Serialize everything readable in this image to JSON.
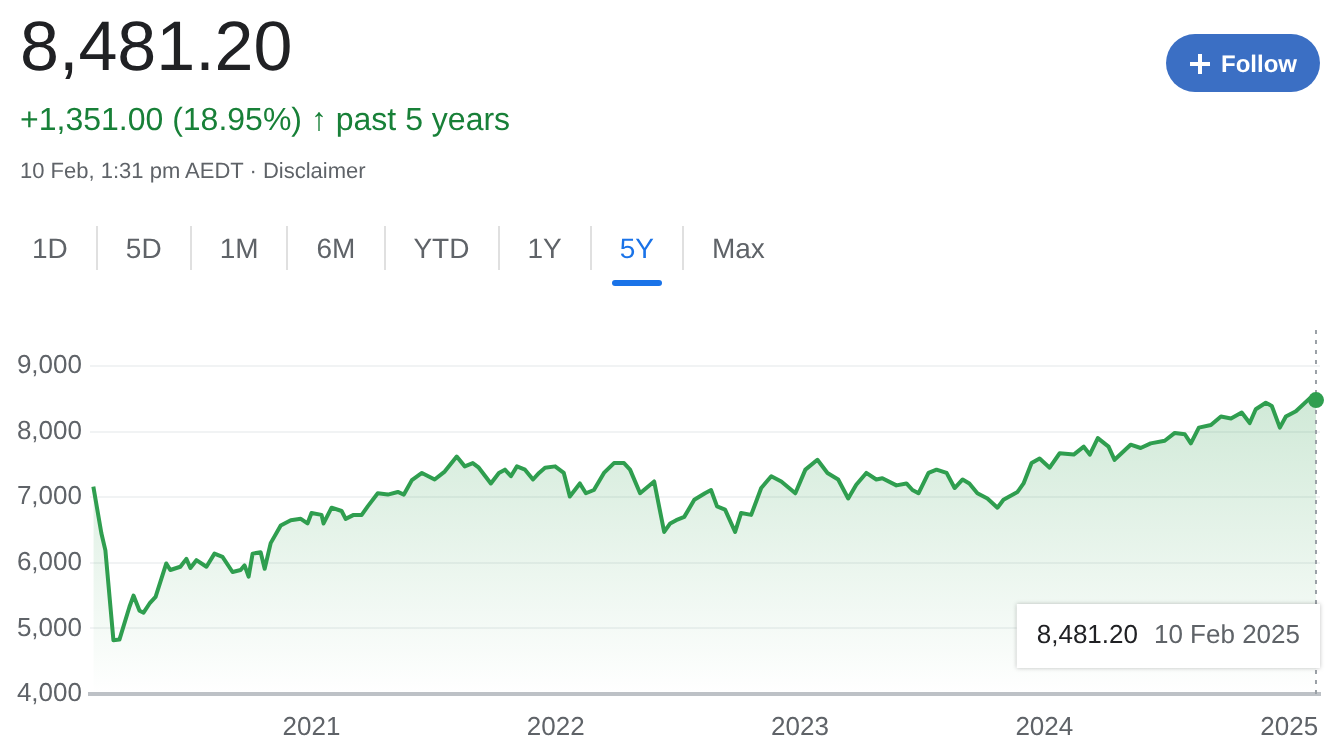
{
  "chart_data": {
    "type": "area",
    "title": "8,481.20",
    "subtitle": "+1,351.00 (18.95%) ↑ past 5 years",
    "annotations": [
      "10 Feb, 1:31 pm AEDT · Disclaimer",
      "Follow",
      "1D",
      "5D",
      "1M",
      "6M",
      "YTD",
      "1Y",
      "5Y",
      "Max",
      "8,481.20",
      "10 Feb 2025"
    ],
    "x": [
      "2020-02-10",
      "2020-02-22",
      "2020-02-28",
      "2020-03-11",
      "2020-03-20",
      "2020-04-04",
      "2020-04-10",
      "2020-04-19",
      "2020-04-25",
      "2020-05-04",
      "2020-05-13",
      "2020-05-29",
      "2020-06-04",
      "2020-06-19",
      "2020-06-28",
      "2020-07-04",
      "2020-07-13",
      "2020-07-28",
      "2020-08-09",
      "2020-08-21",
      "2020-09-05",
      "2020-09-17",
      "2020-09-23",
      "2020-09-29",
      "2020-10-05",
      "2020-10-17",
      "2020-10-23",
      "2020-11-01",
      "2020-11-16",
      "2020-12-01",
      "2020-12-16",
      "2020-12-26",
      "2021-01-01",
      "2021-01-16",
      "2021-01-19",
      "2021-01-31",
      "2021-02-15",
      "2021-02-21",
      "2021-03-05",
      "2021-03-17",
      "2021-03-26",
      "2021-04-10",
      "2021-04-25",
      "2021-05-10",
      "2021-05-19",
      "2021-05-31",
      "2021-06-15",
      "2021-07-04",
      "2021-07-19",
      "2021-08-06",
      "2021-08-18",
      "2021-08-30",
      "2021-09-08",
      "2021-09-26",
      "2021-10-08",
      "2021-10-17",
      "2021-10-26",
      "2021-11-04",
      "2021-11-16",
      "2021-11-28",
      "2021-12-07",
      "2021-12-16",
      "2021-12-31",
      "2022-01-13",
      "2022-01-22",
      "2022-02-06",
      "2022-02-15",
      "2022-02-27",
      "2022-03-14",
      "2022-03-29",
      "2022-04-13",
      "2022-04-22",
      "2022-05-07",
      "2022-05-28",
      "2022-06-12",
      "2022-06-21",
      "2022-06-30",
      "2022-07-12",
      "2022-07-27",
      "2022-08-12",
      "2022-08-21",
      "2022-08-30",
      "2022-09-11",
      "2022-09-26",
      "2022-10-05",
      "2022-10-20",
      "2022-11-04",
      "2022-11-19",
      "2022-12-04",
      "2022-12-25",
      "2023-01-09",
      "2023-01-27",
      "2023-02-11",
      "2023-02-27",
      "2023-03-14",
      "2023-03-26",
      "2023-04-10",
      "2023-04-25",
      "2023-05-04",
      "2023-05-25",
      "2023-06-09",
      "2023-06-18",
      "2023-06-27",
      "2023-07-12",
      "2023-07-24",
      "2023-08-08",
      "2023-08-20",
      "2023-09-01",
      "2023-09-11",
      "2023-09-23",
      "2023-10-08",
      "2023-10-23",
      "2023-11-01",
      "2023-11-22",
      "2023-12-01",
      "2023-12-13",
      "2023-12-25",
      "2024-01-09",
      "2024-01-24",
      "2024-02-14",
      "2024-02-29",
      "2024-03-09",
      "2024-03-21",
      "2024-04-06",
      "2024-04-15",
      "2024-05-09",
      "2024-05-24",
      "2024-06-08",
      "2024-06-29",
      "2024-07-14",
      "2024-07-29",
      "2024-08-07",
      "2024-08-19",
      "2024-09-06",
      "2024-09-21",
      "2024-10-06",
      "2024-10-22",
      "2024-11-03",
      "2024-11-12",
      "2024-11-27",
      "2024-12-06",
      "2024-12-18",
      "2024-12-27",
      "2025-01-11",
      "2025-02-01",
      "2025-02-10"
    ],
    "series": [
      {
        "color": "#2f9e4f",
        "values": [
          7160,
          6450,
          6190,
          4820,
          4830,
          5330,
          5500,
          5270,
          5240,
          5380,
          5480,
          5990,
          5890,
          5940,
          6060,
          5920,
          6040,
          5940,
          6140,
          6090,
          5860,
          5890,
          5960,
          5790,
          6140,
          6160,
          5910,
          6300,
          6570,
          6650,
          6670,
          6600,
          6760,
          6730,
          6600,
          6840,
          6790,
          6670,
          6730,
          6730,
          6860,
          7060,
          7040,
          7080,
          7040,
          7260,
          7370,
          7270,
          7390,
          7620,
          7470,
          7520,
          7450,
          7210,
          7370,
          7420,
          7320,
          7470,
          7420,
          7270,
          7370,
          7450,
          7470,
          7370,
          7010,
          7210,
          7060,
          7110,
          7370,
          7520,
          7520,
          7420,
          7060,
          7240,
          6470,
          6600,
          6650,
          6700,
          6960,
          7060,
          7110,
          6860,
          6810,
          6470,
          6760,
          6730,
          7140,
          7320,
          7240,
          7060,
          7420,
          7570,
          7370,
          7270,
          6980,
          7190,
          7370,
          7270,
          7290,
          7180,
          7210,
          7110,
          7060,
          7370,
          7420,
          7370,
          7140,
          7270,
          7210,
          7060,
          6980,
          6840,
          6960,
          7080,
          7210,
          7520,
          7590,
          7450,
          7670,
          7650,
          7770,
          7650,
          7900,
          7770,
          7570,
          7800,
          7750,
          7820,
          7860,
          7980,
          7960,
          7820,
          8060,
          8100,
          8230,
          8200,
          8290,
          8130,
          8340,
          8440,
          8390,
          8060,
          8230,
          8310,
          8510,
          8481.2
        ]
      }
    ],
    "xlim": [
      "2020-02-05",
      "2025-02-16"
    ],
    "xticks": [
      "2021",
      "2022",
      "2023",
      "2024",
      "2025"
    ],
    "ylim": [
      4000,
      9000
    ],
    "yticks": [
      {
        "value": 4000,
        "label": "4,000"
      },
      {
        "value": 5000,
        "label": "5,000"
      },
      {
        "value": 6000,
        "label": "6,000"
      },
      {
        "value": 7000,
        "label": "7,000"
      },
      {
        "value": 8000,
        "label": "8,000"
      },
      {
        "value": 9000,
        "label": "9,000"
      }
    ],
    "grid": "y",
    "ref_lines": [
      {
        "axis": "x",
        "value": "2025-02-10",
        "color": "#9aa0a6",
        "line_style": "dotted"
      }
    ],
    "legend": false
  }
}
